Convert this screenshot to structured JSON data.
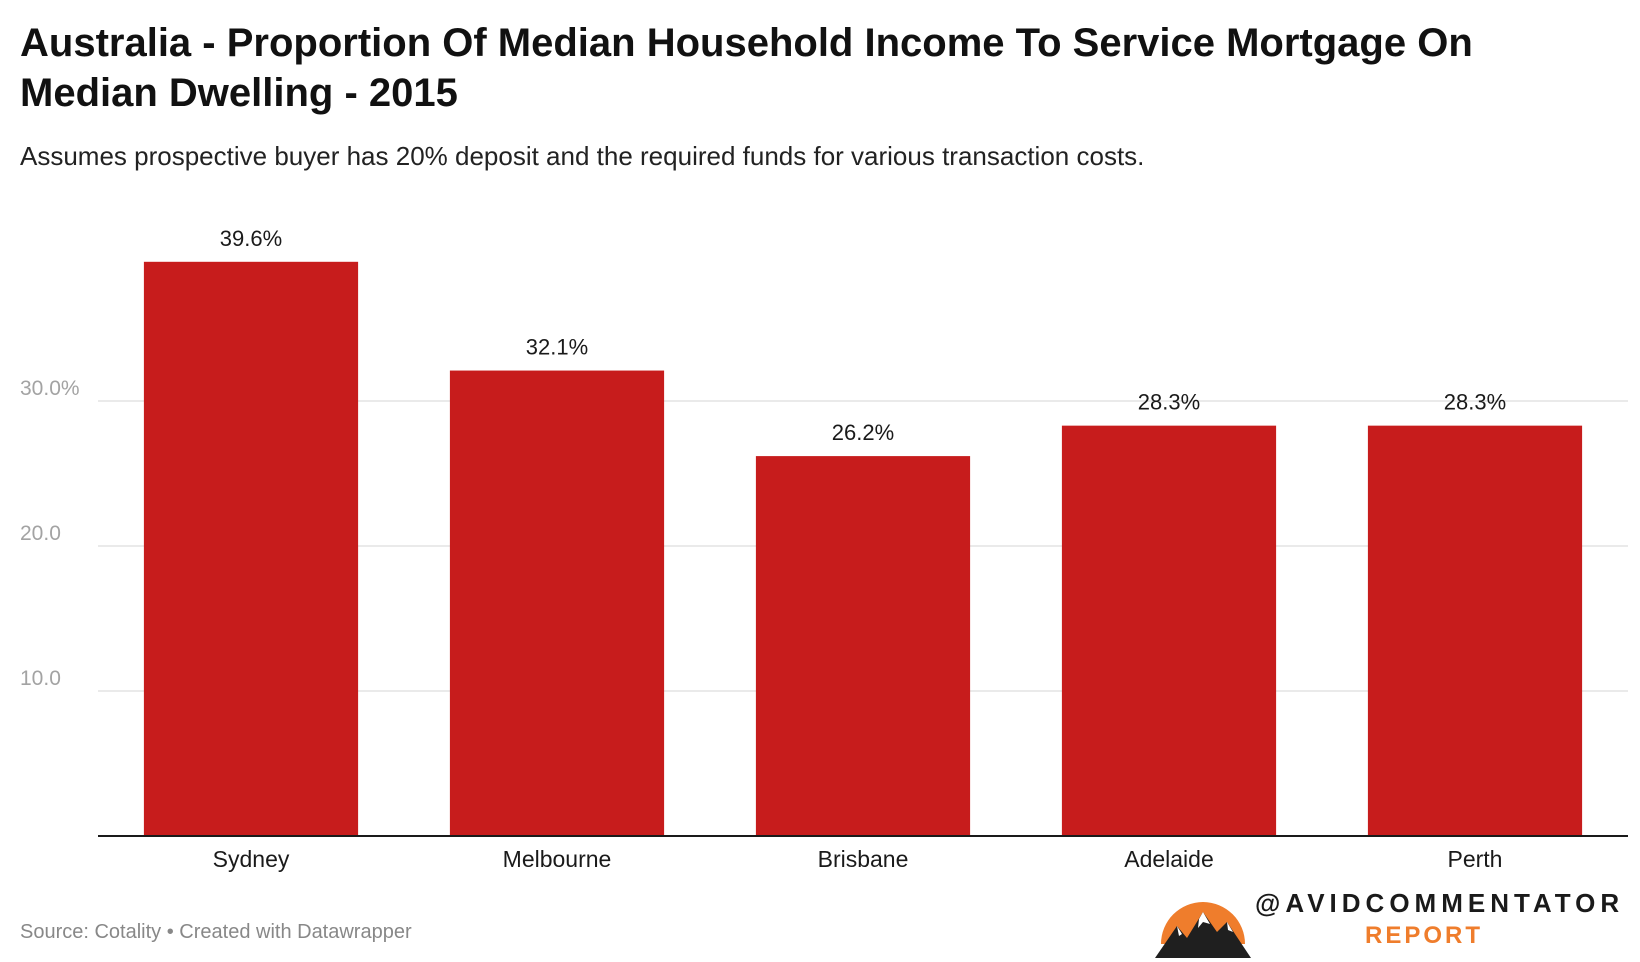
{
  "chart_data": {
    "type": "bar",
    "title": "Australia - Proportion Of Median Household Income To Service Mortgage On Median Dwelling - 2015",
    "subtitle": "Assumes prospective buyer has 20% deposit and the required funds for various transaction costs.",
    "categories": [
      "Sydney",
      "Melbourne",
      "Brisbane",
      "Adelaide",
      "Perth"
    ],
    "values": [
      39.6,
      32.1,
      26.2,
      28.3,
      28.3
    ],
    "data_labels": [
      "39.6%",
      "32.1%",
      "26.2%",
      "28.3%",
      "28.3%"
    ],
    "xlabel": "",
    "ylabel": "",
    "ylim": [
      0,
      40
    ],
    "yticks": [
      10,
      20,
      30
    ],
    "ytick_labels": [
      "10.0",
      "20.0",
      "30.0%"
    ],
    "grid": true,
    "bar_color": "#c71c1c"
  },
  "footer": {
    "source": "Source: Cotality • Created with Datawrapper"
  },
  "logo": {
    "handle": "@AVIDCOMMENTATOR",
    "subtitle": "REPORT",
    "icon": "mountain-sun-icon",
    "accent_color": "#ef7d2c"
  }
}
